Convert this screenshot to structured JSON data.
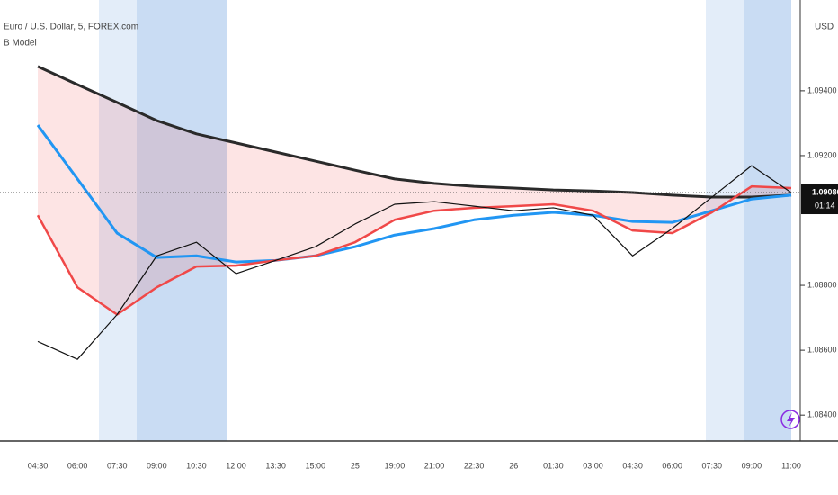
{
  "chart_data": {
    "type": "line",
    "title": "Euro / U.S. Dollar, 5, FOREX.com",
    "subtitle": "B Model",
    "y_axis_label": "USD",
    "categories": [
      "04:30",
      "06:00",
      "07:30",
      "09:00",
      "10:30",
      "12:00",
      "13:30",
      "15:00",
      "25",
      "19:00",
      "21:00",
      "22:30",
      "26",
      "01:30",
      "03:00",
      "04:30",
      "06:00",
      "07:30",
      "09:00",
      "11:00"
    ],
    "series": [
      {
        "color": "#2a2a2a",
        "width": 3,
        "values": [
          1.09475,
          1.09419,
          1.09364,
          1.09308,
          1.09267,
          1.09239,
          1.09211,
          1.09183,
          1.09155,
          1.09128,
          1.09114,
          1.09105,
          1.091,
          1.09094,
          1.09091,
          1.09086,
          1.09078,
          1.09072,
          1.09072,
          1.09078
        ]
      },
      {
        "color": "#2196f3",
        "width": 3,
        "values": [
          1.09294,
          1.09128,
          1.08961,
          1.08886,
          1.08891,
          1.08872,
          1.08877,
          1.08891,
          1.08919,
          1.08955,
          1.08975,
          1.09002,
          1.09016,
          1.09025,
          1.09016,
          1.08997,
          1.08994,
          1.0903,
          1.09066,
          1.09078
        ]
      },
      {
        "color": "#f04848",
        "width": 2.5,
        "values": [
          1.09016,
          1.08794,
          1.0871,
          1.08794,
          1.08858,
          1.08861,
          1.08877,
          1.08891,
          1.08933,
          1.09002,
          1.0903,
          1.09039,
          1.09044,
          1.0905,
          1.0903,
          1.08969,
          1.08961,
          1.09025,
          1.09105,
          1.091
        ]
      },
      {
        "color": "#111111",
        "width": 1.2,
        "values": [
          1.08627,
          1.08572,
          1.0871,
          1.08891,
          1.08933,
          1.08836,
          1.08877,
          1.08919,
          1.08989,
          1.0905,
          1.09058,
          1.09044,
          1.0903,
          1.09039,
          1.09016,
          1.08891,
          1.08975,
          1.09072,
          1.09169,
          1.09086
        ]
      }
    ],
    "last_price": {
      "value": 1.09086,
      "label": "1.09086"
    },
    "countdown": "01:14",
    "ylim": [
      1.0832,
      1.0968
    ],
    "yticks": [
      {
        "value": 1.094,
        "label": "1.09400"
      },
      {
        "value": 1.092,
        "label": "1.09200"
      },
      {
        "value": 1.088,
        "label": "1.08800"
      },
      {
        "value": 1.086,
        "label": "1.08600"
      },
      {
        "value": 1.084,
        "label": "1.08400"
      }
    ]
  }
}
